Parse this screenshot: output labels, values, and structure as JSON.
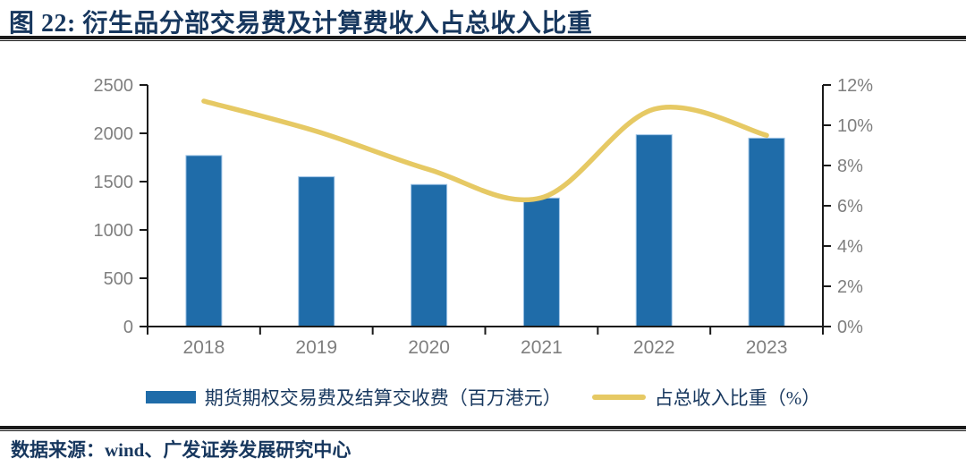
{
  "header": {
    "title": "图 22: 衍生品分部交易费及计算费收入占总收入比重"
  },
  "colors": {
    "title_navy": "#17375e",
    "bar_blue": "#1f6ca9",
    "bar_edge": "#9dc3e6",
    "line_yellow": "#e6c964",
    "axis_line": "#1a1a1a",
    "tick_label_gray": "#7f7f7f"
  },
  "chart_data": {
    "type": "bar",
    "subtype": "combo-bar-line-dual-axis",
    "categories": [
      "2018",
      "2019",
      "2020",
      "2021",
      "2022",
      "2023"
    ],
    "series": [
      {
        "name": "期货期权交易费及结算交收费（百万港元）",
        "type": "bar",
        "axis": "left",
        "values": [
          1770,
          1550,
          1470,
          1330,
          1985,
          1950
        ]
      },
      {
        "name": "占总收入比重（%）",
        "type": "line",
        "axis": "right",
        "values": [
          11.2,
          9.7,
          7.8,
          6.4,
          10.8,
          9.5
        ]
      }
    ],
    "left_axis": {
      "min": 0,
      "max": 2500,
      "step": 500,
      "tick_labels": [
        "0",
        "500",
        "1000",
        "1500",
        "2000",
        "2500"
      ]
    },
    "right_axis": {
      "min": 0,
      "max": 12,
      "step": 2,
      "tick_labels": [
        "0%",
        "2%",
        "4%",
        "6%",
        "8%",
        "10%",
        "12%"
      ]
    },
    "grid": false,
    "legend_position": "bottom",
    "title": "衍生品分部交易费及计算费收入占总收入比重"
  },
  "legend": {
    "items": [
      {
        "label": "期货期权交易费及结算交收费（百万港元）",
        "swatch": "bar"
      },
      {
        "label": "占总收入比重（%）",
        "swatch": "line"
      }
    ]
  },
  "footer": {
    "source": "数据来源：wind、广发证券发展研究中心"
  }
}
